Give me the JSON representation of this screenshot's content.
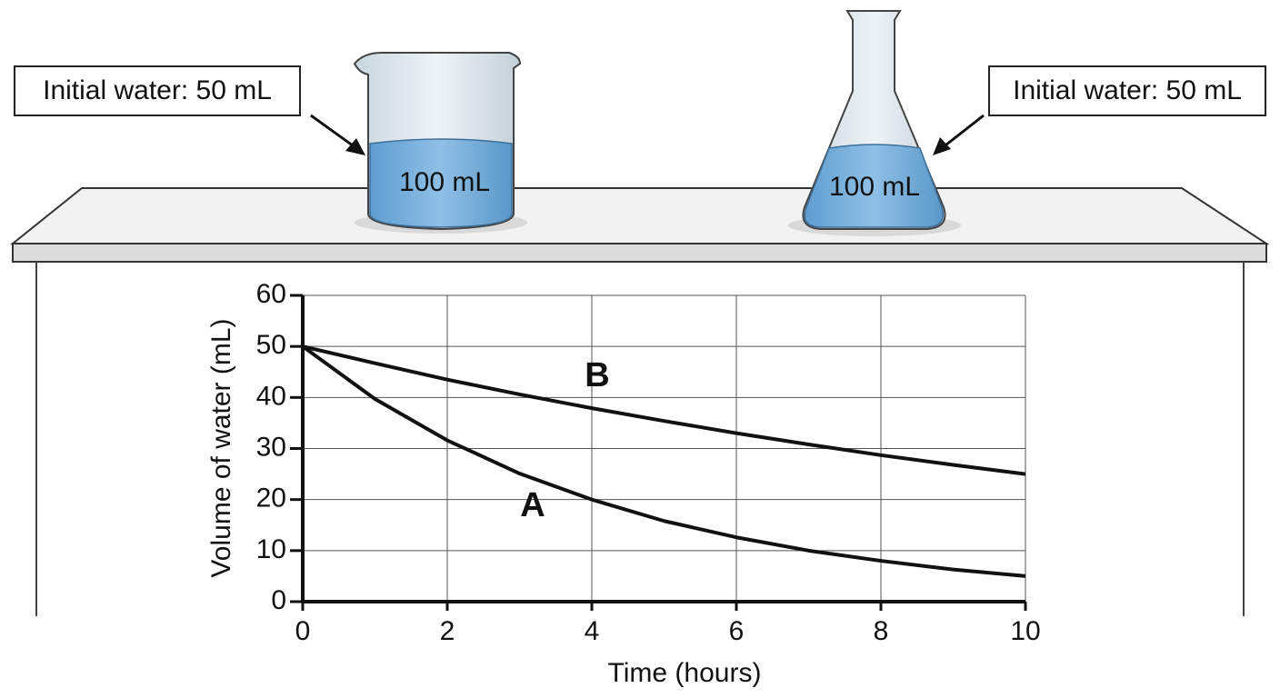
{
  "scene": {
    "beaker": {
      "callout": "Initial water: 50 mL",
      "marking": "100 mL"
    },
    "flask": {
      "callout": "Initial water: 50 mL",
      "marking": "100 mL"
    }
  },
  "chart_data": {
    "type": "line",
    "x_label": "Time (hours)",
    "y_label": "Volume of water (mL)",
    "x": [
      0,
      1,
      2,
      3,
      4,
      5,
      6,
      7,
      8,
      9,
      10
    ],
    "series": [
      {
        "name": "A",
        "color": "#111111",
        "values": [
          50,
          39.7,
          31.6,
          25.1,
          20,
          15.8,
          12.6,
          10,
          8,
          6.3,
          5
        ]
      },
      {
        "name": "B",
        "color": "#111111",
        "values": [
          50,
          46.7,
          43.5,
          40.6,
          37.9,
          35.4,
          33,
          30.8,
          28.7,
          26.8,
          25
        ]
      }
    ],
    "xlim": [
      0,
      10
    ],
    "xticks": [
      0,
      2,
      4,
      6,
      8,
      10
    ],
    "ylim": [
      0,
      60
    ],
    "yticks": [
      0,
      10,
      20,
      30,
      40,
      50,
      60
    ],
    "grid": true
  }
}
